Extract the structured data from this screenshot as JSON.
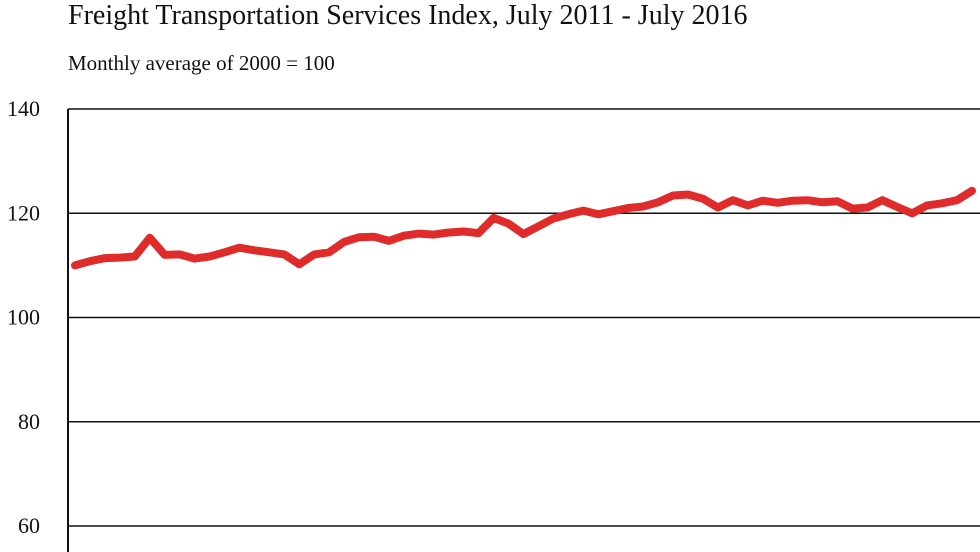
{
  "chart_data": {
    "type": "line",
    "title": "Freight Transportation Services Index, July 2011 - July 2016",
    "subtitle": "Monthly average of 2000 = 100",
    "xlabel": "",
    "ylabel": "",
    "ylim": [
      60,
      140
    ],
    "yticks": [
      "60",
      "80",
      "100",
      "120",
      "140"
    ],
    "grid": true,
    "series_color": "#e02b2b",
    "series": [
      {
        "values": [
          110.0,
          110.8,
          111.4,
          111.5,
          111.7,
          115.3,
          112.0,
          112.1,
          111.3,
          111.7,
          112.5,
          113.4,
          112.9,
          112.5,
          112.1,
          110.2,
          112.1,
          112.5,
          114.5,
          115.4,
          115.5,
          114.7,
          115.7,
          116.1,
          115.9,
          116.3,
          116.5,
          116.2,
          119.1,
          118.0,
          116.0,
          117.5,
          119.0,
          119.8,
          120.5,
          119.8,
          120.4,
          121.0,
          121.3,
          122.1,
          123.4,
          123.6,
          122.8,
          121.1,
          122.5,
          121.5,
          122.4,
          122.0,
          122.4,
          122.5,
          122.1,
          122.3,
          120.9,
          121.1,
          122.5,
          121.2,
          120.0,
          121.5,
          121.9,
          122.5,
          124.3
        ]
      }
    ]
  }
}
